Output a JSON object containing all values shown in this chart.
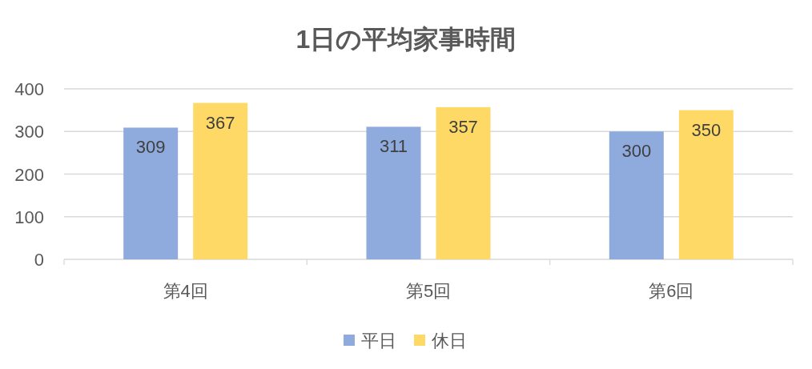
{
  "chart_data": {
    "type": "bar",
    "title": "1日の平均家事時間",
    "categories": [
      "第4回",
      "第5回",
      "第6回"
    ],
    "series": [
      {
        "name": "平日",
        "color": "#8faadc",
        "values": [
          309,
          311,
          300
        ]
      },
      {
        "name": "休日",
        "color": "#ffd966",
        "values": [
          367,
          357,
          350
        ]
      }
    ],
    "ylim": [
      0,
      400
    ],
    "yticks": [
      0,
      100,
      200,
      300,
      400
    ],
    "grid": "y",
    "legend": "bottom",
    "data_labels": true
  }
}
